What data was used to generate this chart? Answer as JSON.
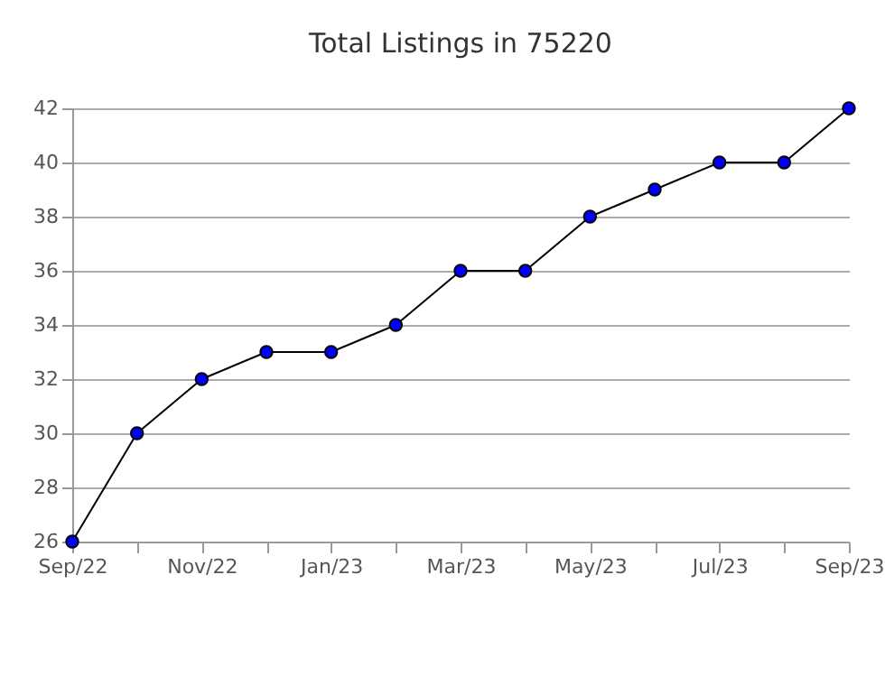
{
  "chart_data": {
    "type": "line",
    "title": "Total Listings in 75220",
    "categories": [
      "Sep/22",
      null,
      "Nov/22",
      null,
      "Jan/23",
      null,
      "Mar/23",
      null,
      "May/23",
      null,
      "Jul/23",
      null,
      "Sep/23"
    ],
    "series": [
      {
        "color": "#000000",
        "colors": [
          "#0000ff",
          "#0000ff",
          "#0000ff",
          "#0000ff",
          "#0000ff",
          "#0000ff",
          "#0000ff",
          "#0000ff",
          "#0000ff",
          "#0000ff",
          "#0000ff",
          "#0000ff",
          "#0000ff"
        ],
        "values": [
          26,
          30,
          32,
          33,
          33,
          34,
          36,
          36,
          38,
          39,
          40,
          40,
          42
        ]
      }
    ],
    "ylim": [
      26,
      42
    ],
    "yticks": [
      26,
      28,
      30,
      32,
      34,
      36,
      38,
      40,
      42
    ],
    "grid": "y",
    "marker": "circle",
    "line_style": "solid"
  }
}
